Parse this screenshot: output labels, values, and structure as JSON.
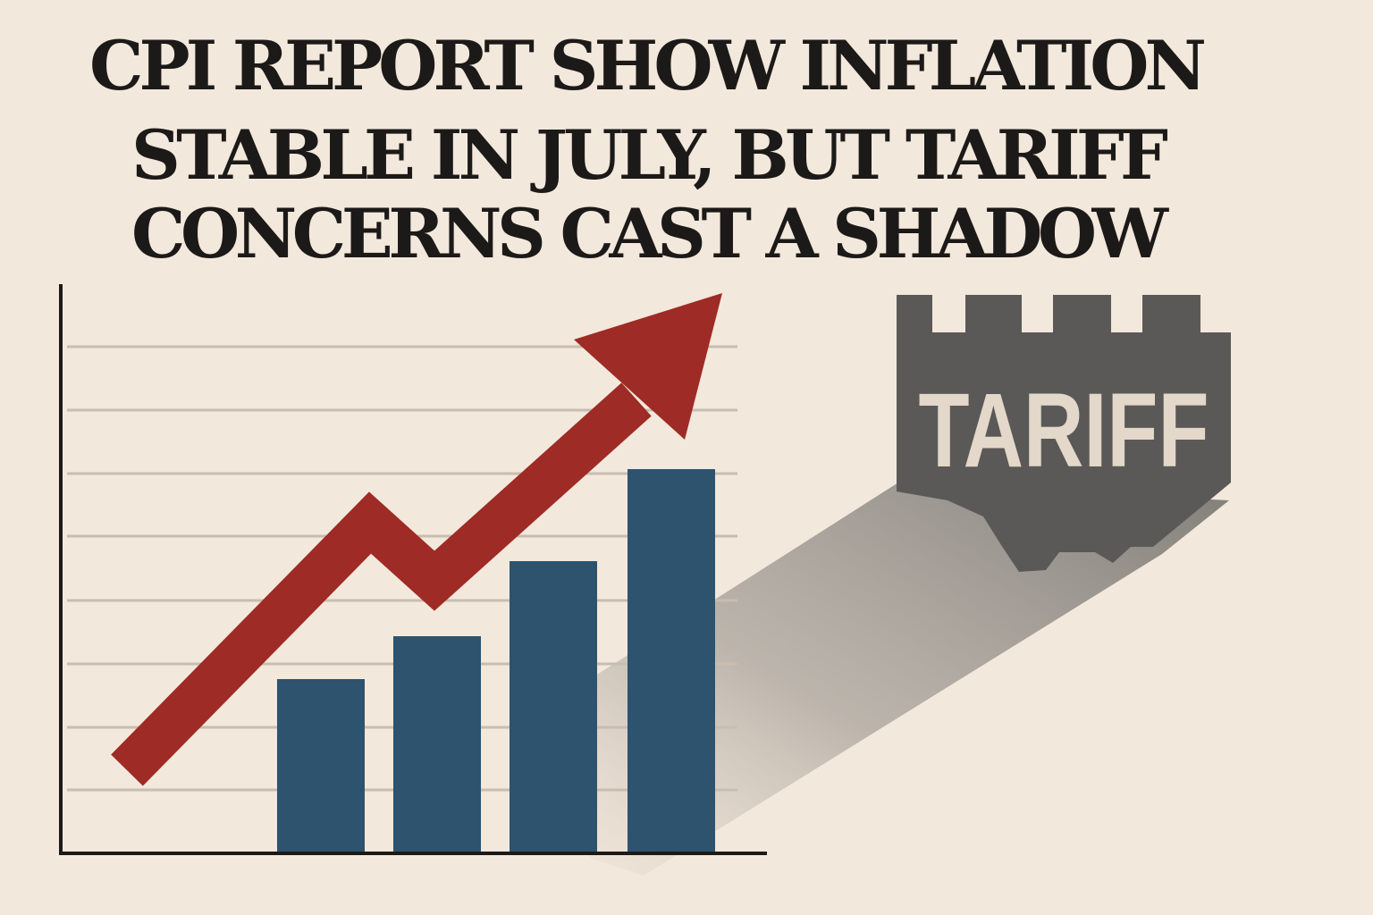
{
  "headline": {
    "lines": [
      "CPI REPORT SHOW INFLATION",
      "STABLE IN JULY, BUT TARIFF",
      "CONCERNS CAST A SHADOW"
    ]
  },
  "sign": {
    "label": "TARIFF"
  }
}
